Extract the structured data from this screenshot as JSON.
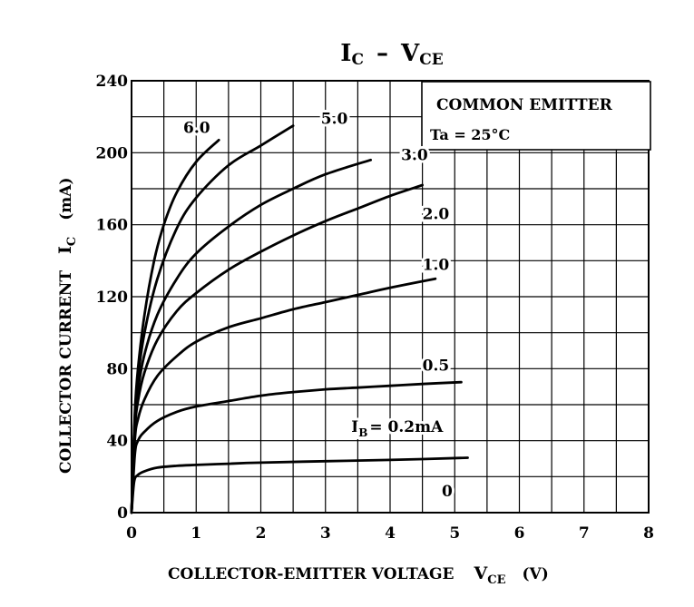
{
  "chart_data": {
    "type": "line",
    "title": {
      "main": "I",
      "main_sub": "C",
      "sep": "–",
      "second": "V",
      "second_sub": "CE"
    },
    "xlabel": {
      "text": "COLLECTOR-EMITTER VOLTAGE",
      "symbol": "V",
      "symbol_sub": "CE",
      "unit": "(V)"
    },
    "ylabel": {
      "text": "COLLECTOR CURRENT",
      "symbol": "I",
      "symbol_sub": "C",
      "unit": "(mA)"
    },
    "xlim": [
      0,
      8
    ],
    "ylim": [
      0,
      240
    ],
    "x_ticks": [
      0,
      1,
      2,
      3,
      4,
      5,
      6,
      7,
      8
    ],
    "y_ticks": [
      0,
      40,
      80,
      120,
      160,
      200,
      240
    ],
    "grid": true,
    "legend_box": {
      "line1": "COMMON EMITTER",
      "line2": "Ta = 25°C",
      "position": "top-right"
    },
    "series": [
      {
        "name": "6.0",
        "points": [
          [
            0,
            0
          ],
          [
            0.05,
            55
          ],
          [
            0.1,
            80
          ],
          [
            0.2,
            110
          ],
          [
            0.35,
            140
          ],
          [
            0.5,
            160
          ],
          [
            0.7,
            178
          ],
          [
            1.0,
            195
          ],
          [
            1.35,
            207
          ]
        ]
      },
      {
        "name": "5.0",
        "points": [
          [
            0,
            0
          ],
          [
            0.05,
            52
          ],
          [
            0.1,
            75
          ],
          [
            0.2,
            100
          ],
          [
            0.4,
            130
          ],
          [
            0.7,
            158
          ],
          [
            1.0,
            175
          ],
          [
            1.5,
            193
          ],
          [
            2.0,
            204
          ],
          [
            2.5,
            215
          ]
        ]
      },
      {
        "name": "3.0",
        "points": [
          [
            0,
            0
          ],
          [
            0.05,
            48
          ],
          [
            0.1,
            68
          ],
          [
            0.2,
            88
          ],
          [
            0.4,
            110
          ],
          [
            0.7,
            130
          ],
          [
            1.0,
            144
          ],
          [
            1.5,
            159
          ],
          [
            2.0,
            171
          ],
          [
            2.5,
            180
          ],
          [
            3.0,
            188
          ],
          [
            3.7,
            196
          ]
        ]
      },
      {
        "name": "2.0",
        "points": [
          [
            0,
            0
          ],
          [
            0.05,
            45
          ],
          [
            0.1,
            62
          ],
          [
            0.2,
            78
          ],
          [
            0.4,
            96
          ],
          [
            0.7,
            112
          ],
          [
            1.0,
            122
          ],
          [
            1.5,
            135
          ],
          [
            2.0,
            145
          ],
          [
            2.5,
            154
          ],
          [
            3.0,
            162
          ],
          [
            3.5,
            169
          ],
          [
            4.0,
            176
          ],
          [
            4.5,
            182
          ]
        ]
      },
      {
        "name": "1.0",
        "points": [
          [
            0,
            0
          ],
          [
            0.05,
            40
          ],
          [
            0.1,
            52
          ],
          [
            0.2,
            63
          ],
          [
            0.4,
            76
          ],
          [
            0.7,
            87
          ],
          [
            1.0,
            95
          ],
          [
            1.5,
            103
          ],
          [
            2.0,
            108
          ],
          [
            2.5,
            113
          ],
          [
            3.0,
            117
          ],
          [
            3.5,
            121
          ],
          [
            4.0,
            125
          ],
          [
            4.7,
            130
          ]
        ]
      },
      {
        "name": "0.5",
        "points": [
          [
            0,
            0
          ],
          [
            0.05,
            32
          ],
          [
            0.1,
            40
          ],
          [
            0.2,
            45
          ],
          [
            0.4,
            51
          ],
          [
            0.7,
            56
          ],
          [
            1.0,
            59
          ],
          [
            1.5,
            62
          ],
          [
            2.0,
            65
          ],
          [
            2.5,
            67
          ],
          [
            3.0,
            68.5
          ],
          [
            3.5,
            69.5
          ],
          [
            4.0,
            70.5
          ],
          [
            4.5,
            71.5
          ],
          [
            5.1,
            72.5
          ]
        ]
      },
      {
        "name": "IB = 0.2mA",
        "points": [
          [
            0,
            0
          ],
          [
            0.04,
            17
          ],
          [
            0.1,
            21
          ],
          [
            0.2,
            23
          ],
          [
            0.4,
            25
          ],
          [
            0.7,
            26
          ],
          [
            1.0,
            26.5
          ],
          [
            1.5,
            27.2
          ],
          [
            2.0,
            27.8
          ],
          [
            3.0,
            28.6
          ],
          [
            4.0,
            29.3
          ],
          [
            5.2,
            30.5
          ]
        ]
      },
      {
        "name": "0",
        "points": []
      }
    ],
    "curve_labels": [
      {
        "text": "6.0",
        "x": 0.8,
        "y": 211
      },
      {
        "text": "5.0",
        "x": 2.93,
        "y": 216
      },
      {
        "text": "3.0",
        "x": 4.17,
        "y": 196
      },
      {
        "text": "2.0",
        "x": 4.5,
        "y": 163
      },
      {
        "text": "1.0",
        "x": 4.5,
        "y": 135
      },
      {
        "text": "0.5",
        "x": 4.5,
        "y": 79
      },
      {
        "text": "0",
        "x": 4.8,
        "y": 9
      }
    ],
    "ib_label": {
      "prefix": "I",
      "sub": "B",
      "text": "= 0.2mA",
      "x": 3.4,
      "y": 45
    }
  }
}
